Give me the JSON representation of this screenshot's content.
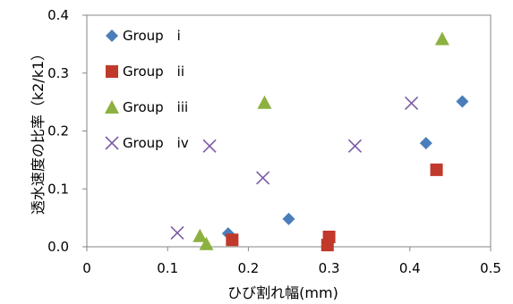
{
  "chart_data": {
    "type": "scatter",
    "xlabel": "ひび割れ幅(mm)",
    "ylabel": "透水速度の比率（k2/k1）",
    "xlim": [
      0,
      0.5
    ],
    "ylim": [
      0,
      0.4
    ],
    "x_ticks": [
      "0",
      "0.1",
      "0.2",
      "0.3",
      "0.4",
      "0.5"
    ],
    "y_ticks": [
      "0.0",
      "0.1",
      "0.2",
      "0.3",
      "0.4"
    ],
    "grid": false,
    "legend_position": "top-left",
    "series": [
      {
        "name": "Group　i",
        "marker": "diamond",
        "color": "#4a7ebb",
        "points": [
          {
            "x": 0.175,
            "y": 0.023
          },
          {
            "x": 0.25,
            "y": 0.048
          },
          {
            "x": 0.42,
            "y": 0.179
          },
          {
            "x": 0.465,
            "y": 0.251
          }
        ]
      },
      {
        "name": "Group　ii",
        "marker": "square",
        "color": "#c0392b",
        "points": [
          {
            "x": 0.18,
            "y": 0.012
          },
          {
            "x": 0.298,
            "y": 0.003
          },
          {
            "x": 0.3,
            "y": 0.017
          },
          {
            "x": 0.433,
            "y": 0.133
          }
        ]
      },
      {
        "name": "Group　iii",
        "marker": "triangle",
        "color": "#8db141",
        "points": [
          {
            "x": 0.14,
            "y": 0.019
          },
          {
            "x": 0.148,
            "y": 0.005
          },
          {
            "x": 0.22,
            "y": 0.249
          },
          {
            "x": 0.44,
            "y": 0.359
          }
        ]
      },
      {
        "name": "Group　iv",
        "marker": "cross",
        "color": "#7b5aa6",
        "points": [
          {
            "x": 0.112,
            "y": 0.024
          },
          {
            "x": 0.152,
            "y": 0.174
          },
          {
            "x": 0.218,
            "y": 0.119
          },
          {
            "x": 0.332,
            "y": 0.174
          },
          {
            "x": 0.402,
            "y": 0.248
          }
        ]
      }
    ]
  }
}
